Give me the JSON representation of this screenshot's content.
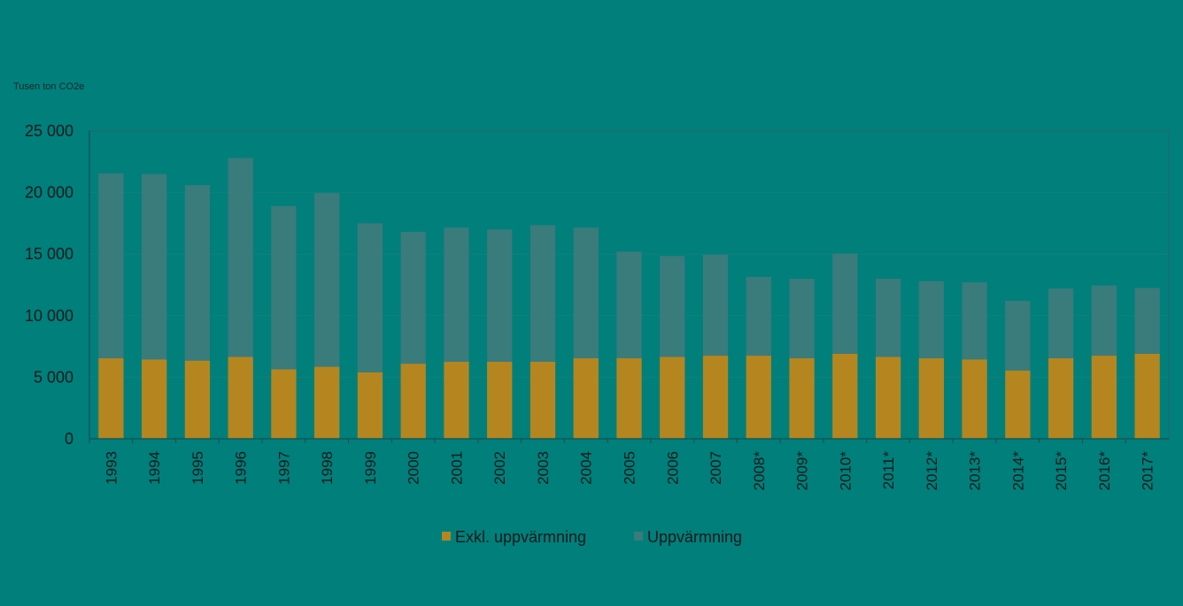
{
  "chart_data": {
    "type": "bar",
    "stacked": true,
    "ylabel": "Tusen ton CO2e",
    "ylim": [
      0,
      25000
    ],
    "yticks": [
      0,
      5000,
      10000,
      15000,
      20000,
      25000
    ],
    "ytick_labels": [
      "0",
      "5 000",
      "10 000",
      "15 000",
      "20 000",
      "25 000"
    ],
    "categories": [
      "1993",
      "1994",
      "1995",
      "1996",
      "1997",
      "1998",
      "1999",
      "2000",
      "2001",
      "2002",
      "2003",
      "2004",
      "2005",
      "2006",
      "2007",
      "2008*",
      "2009*",
      "2010*",
      "2011*",
      "2012*",
      "2013*",
      "2014*",
      "2015*",
      "2016*",
      "2017*"
    ],
    "series": [
      {
        "name": "Exkl. uppvärmning",
        "color": "#b5861f",
        "values": [
          6550,
          6450,
          6350,
          6650,
          5650,
          5850,
          5400,
          6100,
          6250,
          6250,
          6250,
          6550,
          6550,
          6650,
          6750,
          6750,
          6550,
          6900,
          6650,
          6550,
          6450,
          5550,
          6550,
          6750,
          6900
        ]
      },
      {
        "name": "Uppvärmning",
        "color": "#3a7b7c",
        "values": [
          15000,
          15050,
          14250,
          16150,
          13250,
          14100,
          12100,
          10700,
          10900,
          10750,
          11100,
          10600,
          8650,
          8200,
          8200,
          6400,
          6450,
          8150,
          6350,
          6250,
          6250,
          5650,
          5650,
          5700,
          5350
        ]
      }
    ],
    "grid": true,
    "legend": "bottom"
  },
  "colors": {
    "background": "#007f7b",
    "plot_border": "#1c6e6c",
    "gridline": "#12807a"
  }
}
